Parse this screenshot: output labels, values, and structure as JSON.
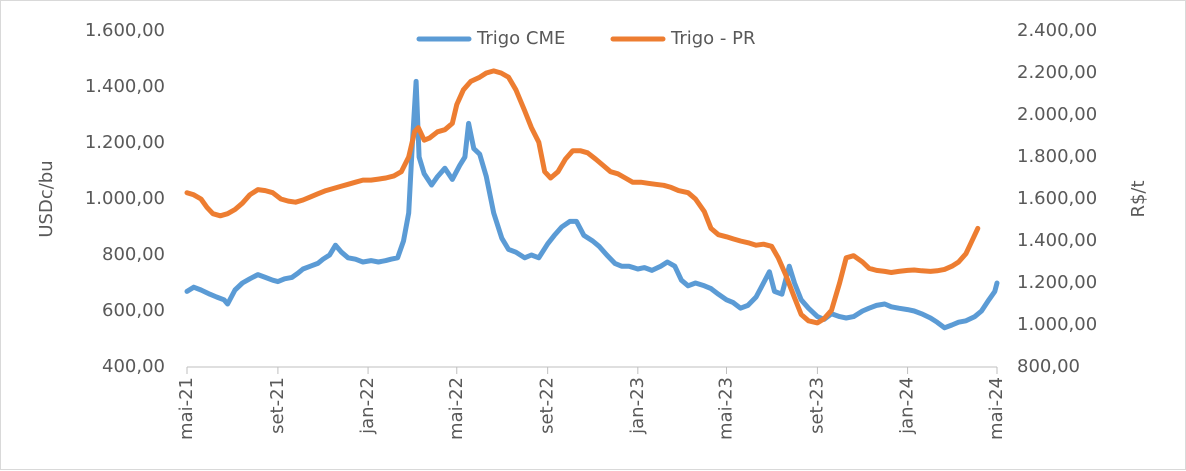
{
  "chart_data": {
    "type": "line",
    "title": "",
    "ylabel_left": "USDc/bu",
    "ylabel_right": "R$/t",
    "ylim_left": [
      400,
      1600
    ],
    "ylim_right": [
      800,
      2400
    ],
    "yticks_left": [
      "400,00",
      "600,00",
      "800,00",
      "1.000,00",
      "1.200,00",
      "1.400,00",
      "1.600,00"
    ],
    "yticks_right": [
      "800,00",
      "1.000,00",
      "1.200,00",
      "1.400,00",
      "1.600,00",
      "1.800,00",
      "2.000,00",
      "2.200,00",
      "2.400,00"
    ],
    "xticks": [
      "mai-21",
      "set-21",
      "jan-22",
      "mai-22",
      "set-22",
      "jan-23",
      "mai-23",
      "set-23",
      "jan-24",
      "mai-24"
    ],
    "xlim": [
      "2021-05",
      "2024-05"
    ],
    "legend_position": "top-center",
    "grid": false,
    "series": [
      {
        "name": "Trigo CME",
        "axis": "left",
        "color": "#5B9BD5",
        "points": [
          [
            "2021-05-01",
            670
          ],
          [
            "2021-05-10",
            685
          ],
          [
            "2021-05-20",
            675
          ],
          [
            "2021-06-01",
            660
          ],
          [
            "2021-06-10",
            650
          ],
          [
            "2021-06-20",
            640
          ],
          [
            "2021-06-25",
            625
          ],
          [
            "2021-07-05",
            675
          ],
          [
            "2021-07-15",
            700
          ],
          [
            "2021-07-25",
            715
          ],
          [
            "2021-08-05",
            730
          ],
          [
            "2021-08-15",
            720
          ],
          [
            "2021-08-25",
            710
          ],
          [
            "2021-09-01",
            705
          ],
          [
            "2021-09-10",
            715
          ],
          [
            "2021-09-20",
            720
          ],
          [
            "2021-09-28",
            735
          ],
          [
            "2021-10-05",
            750
          ],
          [
            "2021-10-15",
            760
          ],
          [
            "2021-10-25",
            770
          ],
          [
            "2021-11-01",
            785
          ],
          [
            "2021-11-10",
            800
          ],
          [
            "2021-11-18",
            835
          ],
          [
            "2021-11-26",
            810
          ],
          [
            "2021-12-05",
            790
          ],
          [
            "2021-12-15",
            785
          ],
          [
            "2021-12-25",
            775
          ],
          [
            "2022-01-05",
            780
          ],
          [
            "2022-01-15",
            775
          ],
          [
            "2022-01-25",
            780
          ],
          [
            "2022-02-01",
            785
          ],
          [
            "2022-02-10",
            790
          ],
          [
            "2022-02-18",
            850
          ],
          [
            "2022-02-25",
            950
          ],
          [
            "2022-03-02",
            1200
          ],
          [
            "2022-03-07",
            1420
          ],
          [
            "2022-03-11",
            1150
          ],
          [
            "2022-03-18",
            1090
          ],
          [
            "2022-03-28",
            1050
          ],
          [
            "2022-04-05",
            1080
          ],
          [
            "2022-04-15",
            1110
          ],
          [
            "2022-04-25",
            1070
          ],
          [
            "2022-05-05",
            1120
          ],
          [
            "2022-05-12",
            1150
          ],
          [
            "2022-05-17",
            1270
          ],
          [
            "2022-05-24",
            1180
          ],
          [
            "2022-06-01",
            1160
          ],
          [
            "2022-06-10",
            1080
          ],
          [
            "2022-06-20",
            950
          ],
          [
            "2022-07-01",
            860
          ],
          [
            "2022-07-10",
            820
          ],
          [
            "2022-07-20",
            810
          ],
          [
            "2022-08-01",
            790
          ],
          [
            "2022-08-10",
            800
          ],
          [
            "2022-08-20",
            790
          ],
          [
            "2022-09-01",
            840
          ],
          [
            "2022-09-10",
            870
          ],
          [
            "2022-09-20",
            900
          ],
          [
            "2022-10-01",
            920
          ],
          [
            "2022-10-10",
            920
          ],
          [
            "2022-10-20",
            870
          ],
          [
            "2022-11-01",
            850
          ],
          [
            "2022-11-10",
            830
          ],
          [
            "2022-11-20",
            800
          ],
          [
            "2022-12-01",
            770
          ],
          [
            "2022-12-10",
            760
          ],
          [
            "2022-12-20",
            760
          ],
          [
            "2023-01-01",
            750
          ],
          [
            "2023-01-10",
            755
          ],
          [
            "2023-01-20",
            745
          ],
          [
            "2023-02-01",
            760
          ],
          [
            "2023-02-10",
            775
          ],
          [
            "2023-02-20",
            760
          ],
          [
            "2023-03-01",
            710
          ],
          [
            "2023-03-10",
            690
          ],
          [
            "2023-03-20",
            700
          ],
          [
            "2023-04-01",
            690
          ],
          [
            "2023-04-10",
            680
          ],
          [
            "2023-04-20",
            660
          ],
          [
            "2023-05-01",
            640
          ],
          [
            "2023-05-10",
            630
          ],
          [
            "2023-05-20",
            610
          ],
          [
            "2023-05-30",
            620
          ],
          [
            "2023-06-10",
            650
          ],
          [
            "2023-06-20",
            700
          ],
          [
            "2023-06-28",
            740
          ],
          [
            "2023-07-05",
            670
          ],
          [
            "2023-07-15",
            660
          ],
          [
            "2023-07-25",
            760
          ],
          [
            "2023-08-01",
            700
          ],
          [
            "2023-08-10",
            640
          ],
          [
            "2023-08-20",
            610
          ],
          [
            "2023-09-01",
            580
          ],
          [
            "2023-09-10",
            570
          ],
          [
            "2023-09-20",
            590
          ],
          [
            "2023-10-01",
            580
          ],
          [
            "2023-10-10",
            575
          ],
          [
            "2023-10-20",
            580
          ],
          [
            "2023-11-01",
            600
          ],
          [
            "2023-11-10",
            610
          ],
          [
            "2023-11-20",
            620
          ],
          [
            "2023-12-01",
            625
          ],
          [
            "2023-12-10",
            615
          ],
          [
            "2023-12-20",
            610
          ],
          [
            "2024-01-01",
            605
          ],
          [
            "2024-01-10",
            600
          ],
          [
            "2024-01-20",
            590
          ],
          [
            "2024-02-01",
            575
          ],
          [
            "2024-02-10",
            560
          ],
          [
            "2024-02-20",
            540
          ],
          [
            "2024-03-01",
            550
          ],
          [
            "2024-03-10",
            560
          ],
          [
            "2024-03-20",
            565
          ],
          [
            "2024-04-01",
            580
          ],
          [
            "2024-04-10",
            600
          ],
          [
            "2024-04-20",
            640
          ],
          [
            "2024-04-28",
            670
          ],
          [
            "2024-05-01",
            700
          ]
        ]
      },
      {
        "name": "Trigo - PR",
        "axis": "right",
        "color": "#ED7D31",
        "points": [
          [
            "2021-05-01",
            1630
          ],
          [
            "2021-05-10",
            1620
          ],
          [
            "2021-05-20",
            1600
          ],
          [
            "2021-05-28",
            1560
          ],
          [
            "2021-06-05",
            1530
          ],
          [
            "2021-06-15",
            1520
          ],
          [
            "2021-06-25",
            1530
          ],
          [
            "2021-07-05",
            1550
          ],
          [
            "2021-07-15",
            1580
          ],
          [
            "2021-07-25",
            1620
          ],
          [
            "2021-08-05",
            1645
          ],
          [
            "2021-08-15",
            1640
          ],
          [
            "2021-08-25",
            1630
          ],
          [
            "2021-09-05",
            1600
          ],
          [
            "2021-09-15",
            1590
          ],
          [
            "2021-09-25",
            1585
          ],
          [
            "2021-10-05",
            1595
          ],
          [
            "2021-10-15",
            1610
          ],
          [
            "2021-10-25",
            1625
          ],
          [
            "2021-11-05",
            1640
          ],
          [
            "2021-11-15",
            1650
          ],
          [
            "2021-11-25",
            1660
          ],
          [
            "2021-12-05",
            1670
          ],
          [
            "2021-12-15",
            1680
          ],
          [
            "2021-12-25",
            1690
          ],
          [
            "2022-01-05",
            1690
          ],
          [
            "2022-01-15",
            1695
          ],
          [
            "2022-01-25",
            1700
          ],
          [
            "2022-02-05",
            1710
          ],
          [
            "2022-02-15",
            1730
          ],
          [
            "2022-02-25",
            1800
          ],
          [
            "2022-03-05",
            1920
          ],
          [
            "2022-03-10",
            1940
          ],
          [
            "2022-03-18",
            1880
          ],
          [
            "2022-03-25",
            1890
          ],
          [
            "2022-04-05",
            1920
          ],
          [
            "2022-04-15",
            1930
          ],
          [
            "2022-04-25",
            1960
          ],
          [
            "2022-05-01",
            2050
          ],
          [
            "2022-05-10",
            2120
          ],
          [
            "2022-05-20",
            2160
          ],
          [
            "2022-06-01",
            2180
          ],
          [
            "2022-06-10",
            2200
          ],
          [
            "2022-06-20",
            2210
          ],
          [
            "2022-06-30",
            2200
          ],
          [
            "2022-07-10",
            2180
          ],
          [
            "2022-07-20",
            2120
          ],
          [
            "2022-08-01",
            2020
          ],
          [
            "2022-08-10",
            1940
          ],
          [
            "2022-08-20",
            1870
          ],
          [
            "2022-08-28",
            1730
          ],
          [
            "2022-09-05",
            1700
          ],
          [
            "2022-09-15",
            1730
          ],
          [
            "2022-09-25",
            1790
          ],
          [
            "2022-10-05",
            1830
          ],
          [
            "2022-10-15",
            1830
          ],
          [
            "2022-10-25",
            1820
          ],
          [
            "2022-11-05",
            1790
          ],
          [
            "2022-11-15",
            1760
          ],
          [
            "2022-11-25",
            1730
          ],
          [
            "2022-12-05",
            1720
          ],
          [
            "2022-12-15",
            1700
          ],
          [
            "2022-12-25",
            1680
          ],
          [
            "2023-01-05",
            1680
          ],
          [
            "2023-01-15",
            1675
          ],
          [
            "2023-01-25",
            1670
          ],
          [
            "2023-02-05",
            1665
          ],
          [
            "2023-02-15",
            1655
          ],
          [
            "2023-02-25",
            1640
          ],
          [
            "2023-03-10",
            1630
          ],
          [
            "2023-03-20",
            1600
          ],
          [
            "2023-04-01",
            1540
          ],
          [
            "2023-04-10",
            1460
          ],
          [
            "2023-04-20",
            1430
          ],
          [
            "2023-05-01",
            1420
          ],
          [
            "2023-05-10",
            1410
          ],
          [
            "2023-05-20",
            1400
          ],
          [
            "2023-06-01",
            1390
          ],
          [
            "2023-06-10",
            1380
          ],
          [
            "2023-06-20",
            1385
          ],
          [
            "2023-07-01",
            1375
          ],
          [
            "2023-07-10",
            1320
          ],
          [
            "2023-07-20",
            1240
          ],
          [
            "2023-08-01",
            1130
          ],
          [
            "2023-08-10",
            1050
          ],
          [
            "2023-08-20",
            1020
          ],
          [
            "2023-09-01",
            1010
          ],
          [
            "2023-09-10",
            1030
          ],
          [
            "2023-09-20",
            1070
          ],
          [
            "2023-10-01",
            1200
          ],
          [
            "2023-10-10",
            1320
          ],
          [
            "2023-10-20",
            1330
          ],
          [
            "2023-11-01",
            1300
          ],
          [
            "2023-11-10",
            1270
          ],
          [
            "2023-11-20",
            1260
          ],
          [
            "2023-12-01",
            1255
          ],
          [
            "2023-12-10",
            1250
          ],
          [
            "2023-12-20",
            1255
          ],
          [
            "2024-01-01",
            1260
          ],
          [
            "2024-01-10",
            1262
          ],
          [
            "2024-01-20",
            1258
          ],
          [
            "2024-02-01",
            1255
          ],
          [
            "2024-02-10",
            1258
          ],
          [
            "2024-02-20",
            1265
          ],
          [
            "2024-03-01",
            1280
          ],
          [
            "2024-03-10",
            1300
          ],
          [
            "2024-03-20",
            1340
          ],
          [
            "2024-03-28",
            1400
          ],
          [
            "2024-04-05",
            1460
          ]
        ]
      }
    ]
  }
}
